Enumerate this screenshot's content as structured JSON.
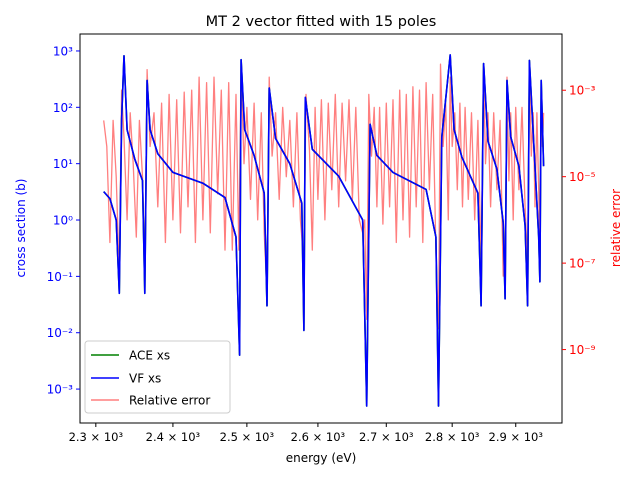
{
  "chart_data": {
    "type": "line",
    "title": "MT 2 vector fitted with 15 poles",
    "xlabel": "energy (eV)",
    "ylabel_left": "cross section (b)",
    "ylabel_right": "relative error",
    "x_scale": "log",
    "y_left_scale": "log",
    "y_right_scale": "log",
    "xlim": [
      2280,
      2975
    ],
    "ylim_left": [
      0.00025,
      2000
    ],
    "ylim_right": [
      2e-11,
      0.02
    ],
    "x_ticks": [
      {
        "value": 2300,
        "label": "2.3 × 10³"
      },
      {
        "value": 2400,
        "label": "2.4 × 10³"
      },
      {
        "value": 2500,
        "label": "2.5 × 10³"
      },
      {
        "value": 2600,
        "label": "2.6 × 10³"
      },
      {
        "value": 2700,
        "label": "2.7 × 10³"
      },
      {
        "value": 2800,
        "label": "2.8 × 10³"
      },
      {
        "value": 2900,
        "label": "2.9 × 10³"
      }
    ],
    "y_left_ticks": [
      {
        "value": 0.001,
        "label": "10⁻³"
      },
      {
        "value": 0.01,
        "label": "10⁻²"
      },
      {
        "value": 0.1,
        "label": "10⁻¹"
      },
      {
        "value": 1,
        "label": "10⁰"
      },
      {
        "value": 10,
        "label": "10¹"
      },
      {
        "value": 100,
        "label": "10²"
      },
      {
        "value": 1000,
        "label": "10³"
      }
    ],
    "y_right_ticks": [
      {
        "value": 1e-09,
        "label": "10⁻⁹"
      },
      {
        "value": 1e-07,
        "label": "10⁻⁷"
      },
      {
        "value": 1e-05,
        "label": "10⁻⁵"
      },
      {
        "value": 0.001,
        "label": "10⁻³"
      }
    ],
    "legend_position": "lower-left",
    "colors": {
      "ace": "#008000",
      "vf": "#0000ff",
      "error": "#ff7f7f",
      "left_axis": "#0000ff",
      "right_axis": "#ff0000"
    },
    "series": [
      {
        "name": "ACE xs",
        "axis": "left",
        "points": [
          [
            2310,
            3.2
          ],
          [
            2318,
            2.4
          ],
          [
            2326,
            1.0
          ],
          [
            2330,
            0.05
          ],
          [
            2333,
            60
          ],
          [
            2336,
            820
          ],
          [
            2340,
            40
          ],
          [
            2350,
            12
          ],
          [
            2360,
            5.0
          ],
          [
            2363,
            0.05
          ],
          [
            2366,
            300
          ],
          [
            2370,
            40
          ],
          [
            2380,
            15
          ],
          [
            2400,
            7
          ],
          [
            2440,
            4.5
          ],
          [
            2470,
            2.5
          ],
          [
            2485,
            0.5
          ],
          [
            2490,
            0.004
          ],
          [
            2492,
            700
          ],
          [
            2497,
            40
          ],
          [
            2510,
            14
          ],
          [
            2524,
            3.0
          ],
          [
            2528,
            0.03
          ],
          [
            2531,
            220
          ],
          [
            2540,
            28
          ],
          [
            2560,
            10
          ],
          [
            2577,
            2.0
          ],
          [
            2580,
            0.011
          ],
          [
            2582,
            150
          ],
          [
            2592,
            18
          ],
          [
            2630,
            6
          ],
          [
            2665,
            1.0
          ],
          [
            2671,
            0.0005
          ],
          [
            2676,
            50
          ],
          [
            2686,
            14
          ],
          [
            2710,
            7
          ],
          [
            2760,
            3.5
          ],
          [
            2775,
            0.5
          ],
          [
            2779,
            0.0005
          ],
          [
            2784,
            30
          ],
          [
            2793,
            300
          ],
          [
            2797,
            850
          ],
          [
            2803,
            40
          ],
          [
            2815,
            13
          ],
          [
            2840,
            3.0
          ],
          [
            2845,
            0.03
          ],
          [
            2849,
            600
          ],
          [
            2856,
            25
          ],
          [
            2870,
            8
          ],
          [
            2880,
            0.9
          ],
          [
            2883,
            0.04
          ],
          [
            2886,
            300
          ],
          [
            2892,
            30
          ],
          [
            2905,
            9
          ],
          [
            2915,
            0.8
          ],
          [
            2919,
            0.03
          ],
          [
            2922,
            680
          ],
          [
            2928,
            35
          ],
          [
            2937,
            0.5
          ],
          [
            2939,
            0.08
          ],
          [
            2941,
            300
          ],
          [
            2945,
            9
          ]
        ]
      },
      {
        "name": "VF xs",
        "axis": "left",
        "points": [
          [
            2310,
            3.2
          ],
          [
            2318,
            2.4
          ],
          [
            2326,
            1.0
          ],
          [
            2330,
            0.05
          ],
          [
            2333,
            60
          ],
          [
            2336,
            820
          ],
          [
            2340,
            40
          ],
          [
            2350,
            12
          ],
          [
            2360,
            5.0
          ],
          [
            2363,
            0.05
          ],
          [
            2366,
            300
          ],
          [
            2370,
            40
          ],
          [
            2380,
            15
          ],
          [
            2400,
            7
          ],
          [
            2440,
            4.5
          ],
          [
            2470,
            2.5
          ],
          [
            2485,
            0.5
          ],
          [
            2490,
            0.004
          ],
          [
            2492,
            700
          ],
          [
            2497,
            40
          ],
          [
            2510,
            14
          ],
          [
            2524,
            3.0
          ],
          [
            2528,
            0.03
          ],
          [
            2531,
            220
          ],
          [
            2540,
            28
          ],
          [
            2560,
            10
          ],
          [
            2577,
            2.0
          ],
          [
            2580,
            0.011
          ],
          [
            2582,
            150
          ],
          [
            2592,
            18
          ],
          [
            2630,
            6
          ],
          [
            2665,
            1.0
          ],
          [
            2671,
            0.0005
          ],
          [
            2676,
            50
          ],
          [
            2686,
            14
          ],
          [
            2710,
            7
          ],
          [
            2760,
            3.5
          ],
          [
            2775,
            0.5
          ],
          [
            2779,
            0.0005
          ],
          [
            2784,
            30
          ],
          [
            2793,
            300
          ],
          [
            2797,
            850
          ],
          [
            2803,
            40
          ],
          [
            2815,
            13
          ],
          [
            2840,
            3.0
          ],
          [
            2845,
            0.03
          ],
          [
            2849,
            600
          ],
          [
            2856,
            25
          ],
          [
            2870,
            8
          ],
          [
            2880,
            0.9
          ],
          [
            2883,
            0.04
          ],
          [
            2886,
            300
          ],
          [
            2892,
            30
          ],
          [
            2905,
            9
          ],
          [
            2915,
            0.8
          ],
          [
            2919,
            0.03
          ],
          [
            2922,
            680
          ],
          [
            2928,
            35
          ],
          [
            2937,
            0.5
          ],
          [
            2939,
            0.08
          ],
          [
            2941,
            300
          ],
          [
            2945,
            9
          ]
        ]
      },
      {
        "name": "Relative error",
        "axis": "right",
        "points": [
          [
            2310,
            0.0002
          ],
          [
            2314,
            5e-05
          ],
          [
            2318,
            3e-07
          ],
          [
            2322,
            0.0002
          ],
          [
            2326,
            1e-05
          ],
          [
            2330,
            5e-08
          ],
          [
            2333,
            0.001
          ],
          [
            2336,
            8e-05
          ],
          [
            2340,
            1e-06
          ],
          [
            2344,
            0.0003
          ],
          [
            2348,
            2e-05
          ],
          [
            2352,
            4e-07
          ],
          [
            2356,
            0.0002
          ],
          [
            2360,
            1e-05
          ],
          [
            2363,
            5e-08
          ],
          [
            2366,
            0.003
          ],
          [
            2370,
            5e-05
          ],
          [
            2375,
            0.0003
          ],
          [
            2380,
            2e-06
          ],
          [
            2385,
            0.0005
          ],
          [
            2390,
            3e-07
          ],
          [
            2395,
            0.0008
          ],
          [
            2400,
            1e-06
          ],
          [
            2405,
            0.0006
          ],
          [
            2410,
            5e-07
          ],
          [
            2415,
            0.0009
          ],
          [
            2420,
            2e-06
          ],
          [
            2425,
            0.001
          ],
          [
            2430,
            3e-07
          ],
          [
            2435,
            0.002
          ],
          [
            2440,
            1e-06
          ],
          [
            2445,
            0.0015
          ],
          [
            2450,
            5e-07
          ],
          [
            2455,
            0.002
          ],
          [
            2460,
            4e-06
          ],
          [
            2465,
            0.001
          ],
          [
            2470,
            2e-07
          ],
          [
            2475,
            0.0015
          ],
          [
            2480,
            2e-07
          ],
          [
            2485,
            0.0008
          ],
          [
            2489,
            2e-07
          ],
          [
            2492,
            0.003
          ],
          [
            2496,
            2e-05
          ],
          [
            2500,
            0.0004
          ],
          [
            2505,
            3e-06
          ],
          [
            2510,
            0.0005
          ],
          [
            2515,
            1e-06
          ],
          [
            2520,
            0.0003
          ],
          [
            2524,
            5e-07
          ],
          [
            2528,
            2e-08
          ],
          [
            2531,
            0.002
          ],
          [
            2535,
            3e-05
          ],
          [
            2540,
            0.0003
          ],
          [
            2545,
            3e-06
          ],
          [
            2550,
            0.0004
          ],
          [
            2555,
            1e-05
          ],
          [
            2560,
            0.0002
          ],
          [
            2565,
            2e-06
          ],
          [
            2570,
            0.0003
          ],
          [
            2575,
            1e-06
          ],
          [
            2580,
            1e-07
          ],
          [
            2583,
            0.0008
          ],
          [
            2588,
            4e-05
          ],
          [
            2592,
            2e-07
          ],
          [
            2596,
            0.0004
          ],
          [
            2600,
            3e-06
          ],
          [
            2605,
            0.0006
          ],
          [
            2610,
            1e-06
          ],
          [
            2615,
            0.0005
          ],
          [
            2620,
            5e-06
          ],
          [
            2625,
            0.0008
          ],
          [
            2630,
            2e-06
          ],
          [
            2635,
            0.0005
          ],
          [
            2640,
            8e-06
          ],
          [
            2645,
            0.0006
          ],
          [
            2650,
            3e-06
          ],
          [
            2655,
            0.0004
          ],
          [
            2660,
            1e-06
          ],
          [
            2665,
            5e-07
          ],
          [
            2668,
            1e-06
          ],
          [
            2671,
            5e-09
          ],
          [
            2674,
            0.0008
          ],
          [
            2678,
            3e-05
          ],
          [
            2682,
            0.0004
          ],
          [
            2686,
            2e-06
          ],
          [
            2690,
            0.0004
          ],
          [
            2695,
            8e-07
          ],
          [
            2700,
            0.0005
          ],
          [
            2705,
            2e-06
          ],
          [
            2710,
            0.0006
          ],
          [
            2715,
            3e-07
          ],
          [
            2720,
            0.001
          ],
          [
            2725,
            1e-06
          ],
          [
            2730,
            0.0008
          ],
          [
            2735,
            4e-07
          ],
          [
            2740,
            0.0012
          ],
          [
            2745,
            2e-06
          ],
          [
            2750,
            0.001
          ],
          [
            2755,
            3e-07
          ],
          [
            2760,
            0.0015
          ],
          [
            2765,
            5e-06
          ],
          [
            2770,
            0.0008
          ],
          [
            2775,
            2e-07
          ],
          [
            2779,
            3e-09
          ],
          [
            2782,
            0.004
          ],
          [
            2786,
            5e-05
          ],
          [
            2790,
            0.0005
          ],
          [
            2794,
            1e-06
          ],
          [
            2797,
            0.002
          ],
          [
            2800,
            5e-05
          ],
          [
            2804,
            0.0003
          ],
          [
            2808,
            5e-06
          ],
          [
            2812,
            0.0005
          ],
          [
            2816,
            2e-06
          ],
          [
            2820,
            0.0004
          ],
          [
            2825,
            3e-06
          ],
          [
            2830,
            0.0003
          ],
          [
            2835,
            1e-06
          ],
          [
            2840,
            0.0002
          ],
          [
            2845,
            1e-07
          ],
          [
            2849,
            0.003
          ],
          [
            2852,
            2e-05
          ],
          [
            2856,
            0.0003
          ],
          [
            2860,
            2e-06
          ],
          [
            2865,
            0.0003
          ],
          [
            2870,
            5e-06
          ],
          [
            2875,
            0.0002
          ],
          [
            2880,
            5e-08
          ],
          [
            2883,
            1e-07
          ],
          [
            2886,
            0.002
          ],
          [
            2889,
            8e-06
          ],
          [
            2892,
            0.0003
          ],
          [
            2896,
            1e-06
          ],
          [
            2900,
            0.0004
          ],
          [
            2905,
            5e-06
          ],
          [
            2910,
            0.0004
          ],
          [
            2915,
            2e-06
          ],
          [
            2919,
            1e-07
          ],
          [
            2922,
            0.004
          ],
          [
            2925,
            3e-05
          ],
          [
            2928,
            0.0003
          ],
          [
            2931,
            2e-06
          ],
          [
            2934,
            0.0003
          ],
          [
            2937,
            5e-06
          ],
          [
            2939,
            8e-08
          ],
          [
            2941,
            0.0006
          ],
          [
            2943,
            5e-05
          ],
          [
            2945,
            0.0003
          ]
        ]
      }
    ]
  }
}
